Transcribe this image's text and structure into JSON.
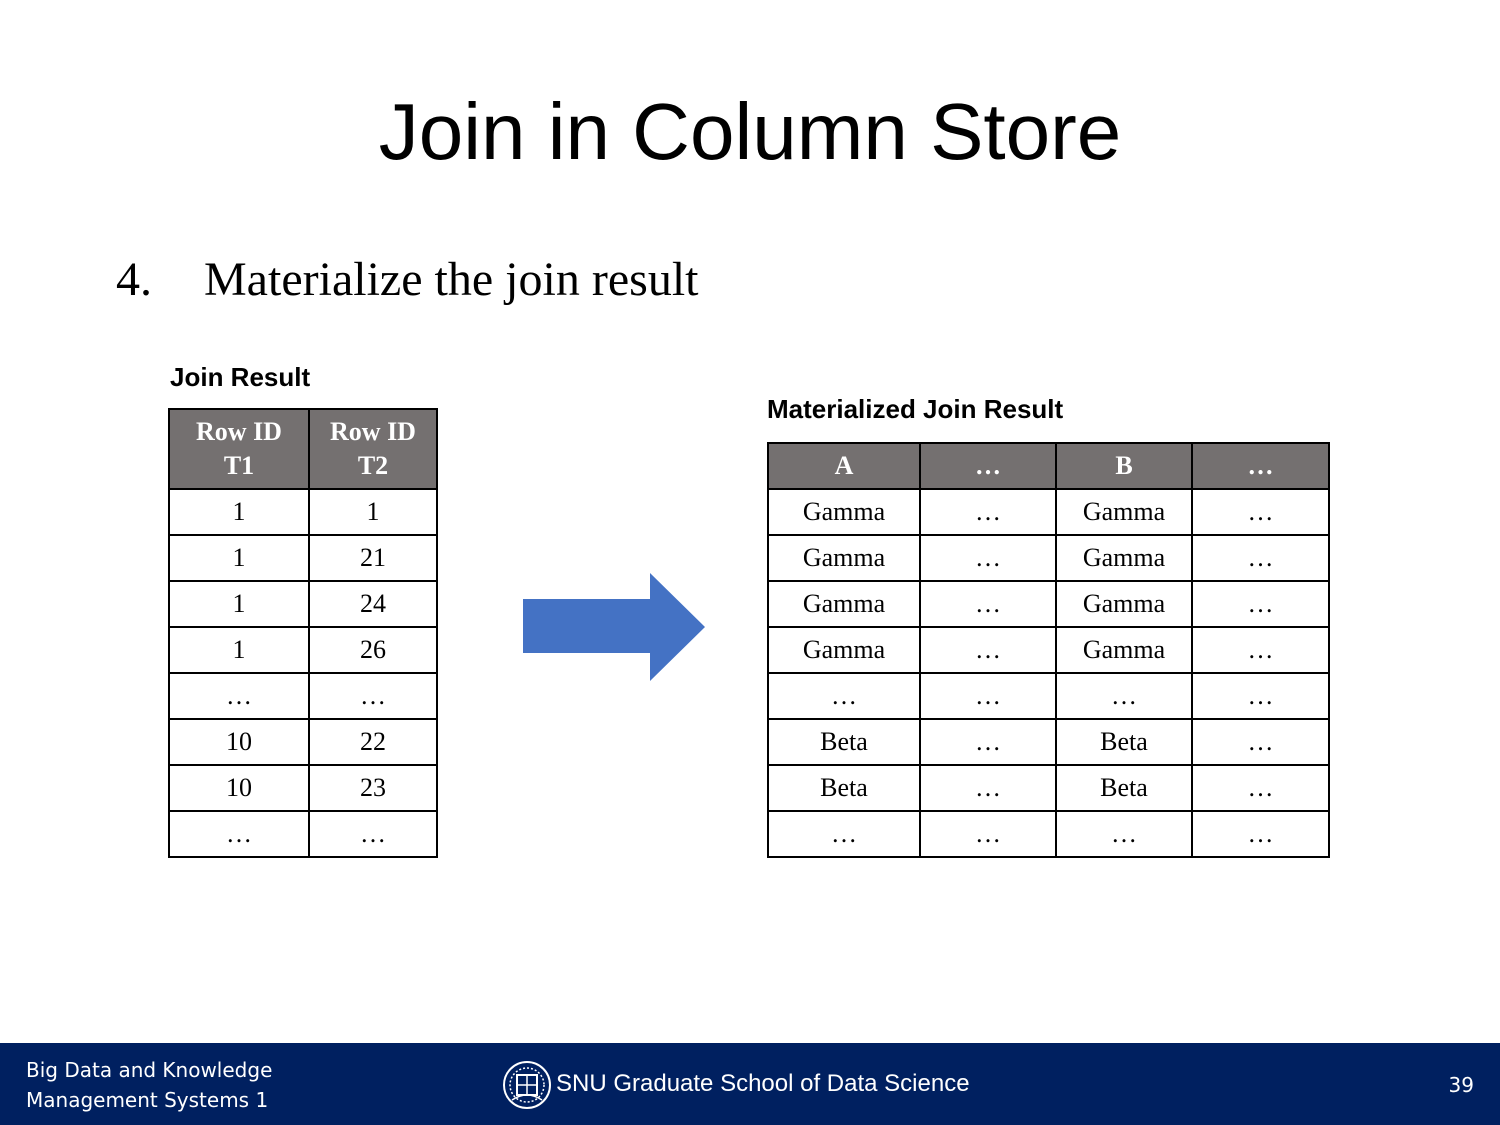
{
  "slide": {
    "title": "Join in Column Store",
    "bullet_number": "4.",
    "bullet_text": "Materialize the join result"
  },
  "join_result": {
    "caption": "Join Result",
    "headers": [
      [
        "Row ID",
        "T1"
      ],
      [
        "Row ID",
        "T2"
      ]
    ],
    "rows": [
      [
        "1",
        "1"
      ],
      [
        "1",
        "21"
      ],
      [
        "1",
        "24"
      ],
      [
        "1",
        "26"
      ],
      [
        "…",
        "…"
      ],
      [
        "10",
        "22"
      ],
      [
        "10",
        "23"
      ],
      [
        "…",
        "…"
      ]
    ]
  },
  "materialized": {
    "caption": "Materialized Join Result",
    "headers": [
      "A",
      "…",
      "B",
      "…"
    ],
    "rows": [
      [
        "Gamma",
        "…",
        "Gamma",
        "…"
      ],
      [
        "Gamma",
        "…",
        "Gamma",
        "…"
      ],
      [
        "Gamma",
        "…",
        "Gamma",
        "…"
      ],
      [
        "Gamma",
        "…",
        "Gamma",
        "…"
      ],
      [
        "…",
        "…",
        "…",
        "…"
      ],
      [
        "Beta",
        "…",
        "Beta",
        "…"
      ],
      [
        "Beta",
        "…",
        "Beta",
        "…"
      ],
      [
        "…",
        "…",
        "…",
        "…"
      ]
    ]
  },
  "arrow": {
    "icon": "right-arrow-icon",
    "color": "#4472C4"
  },
  "footer": {
    "course_line1": "Big Data and Knowledge",
    "course_line2": "Management Systems 1",
    "logo_icon": "snu-emblem-icon",
    "school": "SNU Graduate School of Data Science",
    "page_number": "39",
    "background": "#002060"
  }
}
